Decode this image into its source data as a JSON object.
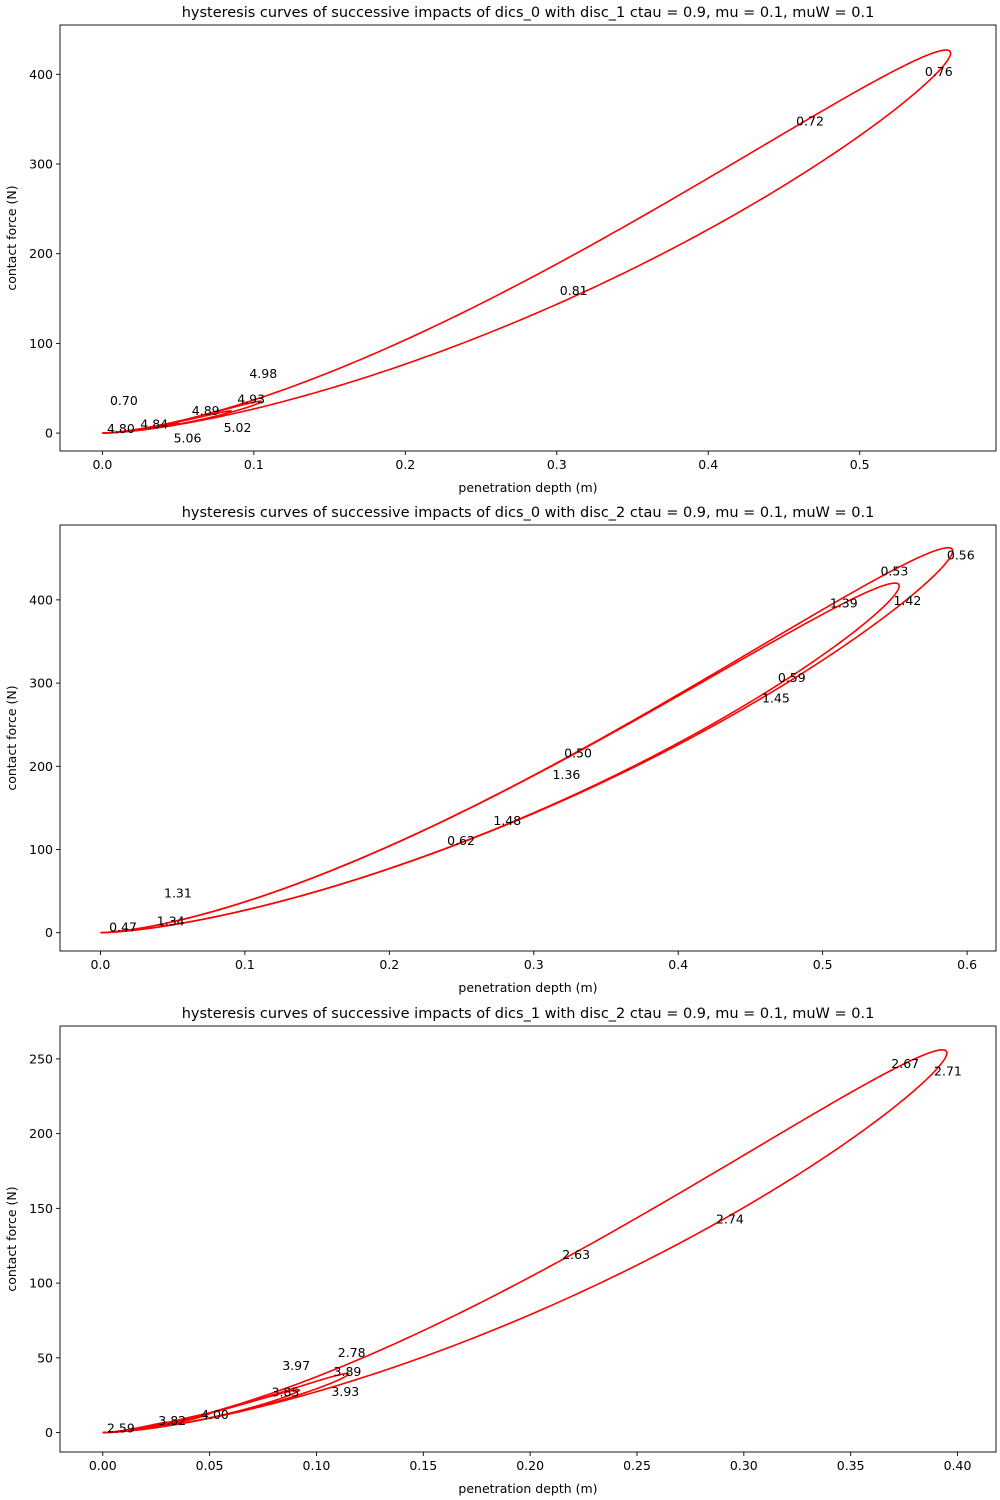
{
  "chart_data": [
    {
      "type": "line",
      "title": "hysteresis curves of successive impacts of dics_0  with disc_1 ctau = 0.9, mu = 0.1, muW = 0.1",
      "xlabel": "penetration depth (m)",
      "ylabel": "contact force (N)",
      "xlim": [
        -0.028,
        0.59
      ],
      "ylim": [
        -20,
        455
      ],
      "xticks": [
        0.0,
        0.1,
        0.2,
        0.3,
        0.4,
        0.5
      ],
      "xtick_labels": [
        "0.0",
        "0.1",
        "0.2",
        "0.3",
        "0.4",
        "0.5"
      ],
      "yticks": [
        0,
        100,
        200,
        300,
        400
      ],
      "ytick_labels": [
        "0",
        "100",
        "200",
        "300",
        "400"
      ],
      "grid": false,
      "color": "#ff0000",
      "loops": [
        {
          "max_depth": 0.56,
          "max_force": 432
        },
        {
          "max_depth": 0.105,
          "max_force": 36
        },
        {
          "max_depth": 0.085,
          "max_force": 25
        },
        {
          "max_depth": 0.05,
          "max_force": 11
        },
        {
          "max_depth": 0.02,
          "max_force": 3
        }
      ],
      "annotations": [
        {
          "text": "0.76",
          "x": 0.543,
          "y": 403
        },
        {
          "text": "0.72",
          "x": 0.458,
          "y": 348
        },
        {
          "text": "0.81",
          "x": 0.302,
          "y": 159
        },
        {
          "text": "4.93",
          "x": 0.089,
          "y": 38
        },
        {
          "text": "4.98",
          "x": 0.097,
          "y": 35
        },
        {
          "text": "4.89",
          "x": 0.059,
          "y": 25
        },
        {
          "text": "5.02",
          "x": 0.08,
          "y": 22
        },
        {
          "text": "4.84",
          "x": 0.025,
          "y": 10
        },
        {
          "text": "5.06",
          "x": 0.047,
          "y": 10
        },
        {
          "text": "4.80",
          "x": 0.003,
          "y": 5
        },
        {
          "text": "0.70",
          "x": 0.005,
          "y": 5
        }
      ]
    },
    {
      "type": "line",
      "title": "hysteresis curves of successive impacts of dics_0  with disc_2 ctau = 0.9, mu = 0.1, muW = 0.1",
      "xlabel": "penetration depth (m)",
      "ylabel": "contact force (N)",
      "xlim": [
        -0.028,
        0.62
      ],
      "ylim": [
        -22,
        490
      ],
      "xticks": [
        0.0,
        0.1,
        0.2,
        0.3,
        0.4,
        0.5,
        0.6
      ],
      "xtick_labels": [
        "0.0",
        "0.1",
        "0.2",
        "0.3",
        "0.4",
        "0.5",
        "0.6"
      ],
      "yticks": [
        0,
        100,
        200,
        300,
        400
      ],
      "ytick_labels": [
        "0",
        "100",
        "200",
        "300",
        "400"
      ],
      "grid": false,
      "color": "#ff0000",
      "loops": [
        {
          "max_depth": 0.59,
          "max_force": 468
        },
        {
          "max_depth": 0.553,
          "max_force": 425
        }
      ],
      "annotations": [
        {
          "text": "0.56",
          "x": 0.586,
          "y": 454
        },
        {
          "text": "0.53",
          "x": 0.54,
          "y": 435
        },
        {
          "text": "1.42",
          "x": 0.549,
          "y": 416
        },
        {
          "text": "1.39",
          "x": 0.505,
          "y": 396
        },
        {
          "text": "0.59",
          "x": 0.469,
          "y": 307
        },
        {
          "text": "1.45",
          "x": 0.458,
          "y": 299
        },
        {
          "text": "0.50",
          "x": 0.321,
          "y": 216
        },
        {
          "text": "1.36",
          "x": 0.313,
          "y": 207
        },
        {
          "text": "1.48",
          "x": 0.272,
          "y": 135
        },
        {
          "text": "0.62",
          "x": 0.24,
          "y": 111
        },
        {
          "text": "0.47",
          "x": 0.006,
          "y": 7
        },
        {
          "text": "1.34",
          "x": 0.039,
          "y": 14
        },
        {
          "text": "1.31",
          "x": 0.044,
          "y": 14
        }
      ]
    },
    {
      "type": "line",
      "title": "hysteresis curves of successive impacts of dics_1  with disc_2 ctau = 0.9, mu = 0.1, muW = 0.1",
      "xlabel": "penetration depth (m)",
      "ylabel": "contact force (N)",
      "xlim": [
        -0.02,
        0.418
      ],
      "ylim": [
        -13,
        272
      ],
      "xticks": [
        0.0,
        0.05,
        0.1,
        0.15,
        0.2,
        0.25,
        0.3,
        0.35,
        0.4
      ],
      "xtick_labels": [
        "0.00",
        "0.05",
        "0.10",
        "0.15",
        "0.20",
        "0.25",
        "0.30",
        "0.35",
        "0.40"
      ],
      "yticks": [
        0,
        50,
        100,
        150,
        200,
        250
      ],
      "ytick_labels": [
        "0",
        "50",
        "100",
        "150",
        "200",
        "250"
      ],
      "grid": false,
      "color": "#ff0000",
      "loops": [
        {
          "max_depth": 0.395,
          "max_force": 259
        },
        {
          "max_depth": 0.115,
          "max_force": 40
        },
        {
          "max_depth": 0.092,
          "max_force": 29
        },
        {
          "max_depth": 0.05,
          "max_force": 13
        },
        {
          "max_depth": 0.03,
          "max_force": 7
        }
      ],
      "annotations": [
        {
          "text": "2.67",
          "x": 0.369,
          "y": 247
        },
        {
          "text": "2.71",
          "x": 0.389,
          "y": 242
        },
        {
          "text": "2.74",
          "x": 0.287,
          "y": 143
        },
        {
          "text": "2.63",
          "x": 0.215,
          "y": 119
        },
        {
          "text": "3.89",
          "x": 0.108,
          "y": 41
        },
        {
          "text": "3.93",
          "x": 0.107,
          "y": 37
        },
        {
          "text": "2.78",
          "x": 0.11,
          "y": 35
        },
        {
          "text": "3.85",
          "x": 0.079,
          "y": 27
        },
        {
          "text": "3.97",
          "x": 0.084,
          "y": 26
        },
        {
          "text": "4.00",
          "x": 0.046,
          "y": 12
        },
        {
          "text": "3.82",
          "x": 0.026,
          "y": 8
        },
        {
          "text": "2.59",
          "x": 0.002,
          "y": 3
        }
      ]
    }
  ]
}
